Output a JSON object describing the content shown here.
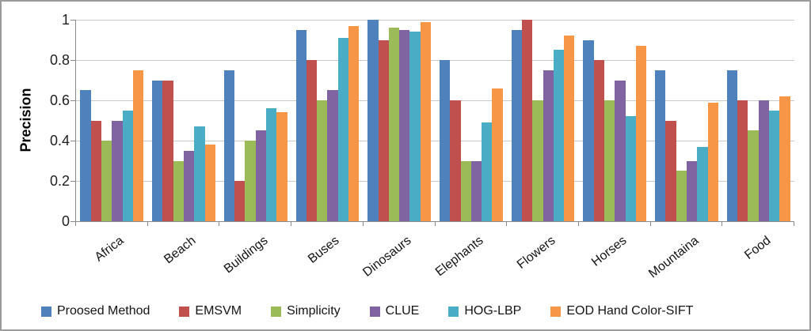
{
  "colors": {
    "background": "#ffffff",
    "frame_border": "#9b9b9b",
    "gridline": "#c9c9c9",
    "axis_line": "#8a8a8a",
    "text": "#141414"
  },
  "chart_data": {
    "type": "bar",
    "title": "",
    "xlabel": "",
    "ylabel": "Precision",
    "ylim": [
      0,
      1
    ],
    "grid": "horizontal",
    "legend_position": "bottom",
    "categories": [
      "Africa",
      "Beach",
      "Buildings",
      "Buses",
      "Dinosaurs",
      "Elephants",
      "Flowers",
      "Horses",
      "Mountaina",
      "Food"
    ],
    "yticks": [
      {
        "label": "1",
        "value": 1
      },
      {
        "label": "0.8",
        "value": 0.8
      },
      {
        "label": "0.6",
        "value": 0.6
      },
      {
        "label": "0.4",
        "value": 0.4
      },
      {
        "label": "0.2",
        "value": 0.2
      },
      {
        "label": "0",
        "value": 0
      }
    ],
    "series": [
      {
        "name": "Proosed Method",
        "color": "#4F81BD",
        "values": [
          0.65,
          0.7,
          0.75,
          0.95,
          1.0,
          0.8,
          0.95,
          0.9,
          0.75,
          0.75
        ]
      },
      {
        "name": "EMSVM",
        "color": "#C0504D",
        "values": [
          0.5,
          0.7,
          0.2,
          0.8,
          0.9,
          0.6,
          1.0,
          0.8,
          0.5,
          0.6
        ]
      },
      {
        "name": "Simplicity",
        "color": "#9BBB59",
        "values": [
          0.4,
          0.3,
          0.4,
          0.6,
          0.96,
          0.3,
          0.6,
          0.6,
          0.25,
          0.45
        ]
      },
      {
        "name": "CLUE",
        "color": "#8064A2",
        "values": [
          0.5,
          0.35,
          0.45,
          0.65,
          0.95,
          0.3,
          0.75,
          0.7,
          0.3,
          0.6
        ]
      },
      {
        "name": "HOG-LBP",
        "color": "#4BACC6",
        "values": [
          0.55,
          0.47,
          0.56,
          0.91,
          0.94,
          0.49,
          0.85,
          0.52,
          0.37,
          0.55
        ]
      },
      {
        "name": "EOD Hand Color-SIFT",
        "color": "#F79646",
        "values": [
          0.75,
          0.38,
          0.54,
          0.97,
          0.99,
          0.66,
          0.92,
          0.87,
          0.59,
          0.62
        ]
      }
    ]
  }
}
